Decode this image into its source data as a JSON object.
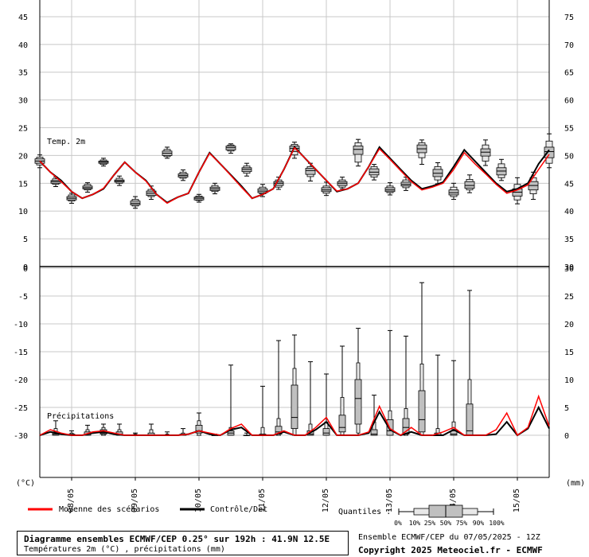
{
  "chart_data": {
    "type": "box",
    "title": "Diagramme ensembles ECMWF/CEP 0.25° sur 192h : 41.9N 12.5E",
    "subtitle": "Températures 2m (°C) , précipitations (mm)",
    "x_tick_labels": [
      "08/05",
      "09/05",
      "10/05",
      "11/05",
      "12/05",
      "13/05",
      "14/05",
      "15/05"
    ],
    "x_range": [
      0,
      48
    ],
    "day_ticks": [
      3,
      9,
      15,
      21,
      27,
      33,
      39,
      45
    ],
    "temperature_panel": {
      "label": "Temp. 2m",
      "left_axis_ticks": [
        45,
        40,
        35,
        30,
        25,
        20,
        15,
        10,
        5,
        0
      ],
      "right_axis_ticks": [
        75,
        70,
        65,
        60,
        55,
        50,
        45,
        40,
        35,
        30
      ],
      "ylim": [
        0,
        48
      ],
      "x": [
        0,
        1,
        2,
        3,
        4,
        5,
        6,
        7,
        8,
        9,
        10,
        11,
        12,
        13,
        14,
        15,
        16,
        17,
        18,
        19,
        20,
        21,
        22,
        23,
        24,
        25,
        26,
        27,
        28,
        29,
        30,
        31,
        32,
        33,
        34,
        35,
        36,
        37,
        38,
        39,
        40,
        41,
        42,
        43,
        44,
        45,
        46,
        47,
        48
      ],
      "control": [
        19,
        17,
        15.5,
        13.5,
        12.3,
        13,
        14,
        16.5,
        18.8,
        17,
        15.5,
        13,
        11.5,
        12.5,
        13.2,
        17,
        20.5,
        18.5,
        16.5,
        14.5,
        12.3,
        13,
        14,
        17.5,
        21.5,
        19.5,
        17.5,
        15.5,
        13.5,
        14,
        15,
        18,
        21.5,
        19.5,
        17.5,
        15.5,
        14,
        14.5,
        15.2,
        18,
        21,
        19,
        17,
        15,
        13.5,
        14,
        15,
        18.5,
        21
      ],
      "mean": [
        19,
        17,
        15.3,
        13.5,
        12.3,
        13,
        14.1,
        16.5,
        18.8,
        17,
        15.4,
        13,
        11.4,
        12.5,
        13.2,
        17,
        20.4,
        18.5,
        16.4,
        14.3,
        12.3,
        13,
        14,
        17.5,
        21.4,
        19.5,
        17.5,
        15.5,
        13.6,
        14,
        15,
        18,
        21.2,
        19.3,
        17.3,
        15.3,
        13.8,
        14.3,
        15,
        17.5,
        20.5,
        18.5,
        16.7,
        14.8,
        13.2,
        13.8,
        14.7,
        17.5,
        20.2
      ],
      "boxes": [
        {
          "t": 0,
          "min": 17.8,
          "p10": 18.3,
          "p25": 18.6,
          "med": 19,
          "p75": 19.4,
          "p90": 19.7,
          "max": 20.1
        },
        {
          "t": 3,
          "min": 14.4,
          "p10": 14.8,
          "p25": 15,
          "med": 15.3,
          "p75": 15.5,
          "p90": 15.8,
          "max": 16.1
        },
        {
          "t": 6,
          "min": 11.4,
          "p10": 11.8,
          "p25": 12,
          "med": 12.3,
          "p75": 12.6,
          "p90": 12.9,
          "max": 13.2
        },
        {
          "t": 9,
          "min": 13.4,
          "p10": 13.8,
          "p25": 14,
          "med": 14.2,
          "p75": 14.5,
          "p90": 14.8,
          "max": 15.1
        },
        {
          "t": 12,
          "min": 18.1,
          "p10": 18.4,
          "p25": 18.6,
          "med": 18.8,
          "p75": 19,
          "p90": 19.2,
          "max": 19.5
        },
        {
          "t": 15,
          "min": 14.6,
          "p10": 15,
          "p25": 15.2,
          "med": 15.4,
          "p75": 15.6,
          "p90": 15.9,
          "max": 16.3
        },
        {
          "t": 18,
          "min": 10.5,
          "p10": 10.9,
          "p25": 11.1,
          "med": 11.4,
          "p75": 11.8,
          "p90": 12.1,
          "max": 12.6
        },
        {
          "t": 21,
          "min": 12.1,
          "p10": 12.6,
          "p25": 12.8,
          "med": 13.2,
          "p75": 13.6,
          "p90": 13.9,
          "max": 14.5
        },
        {
          "t": 24,
          "min": 19.5,
          "p10": 19.8,
          "p25": 20,
          "med": 20.4,
          "p75": 20.8,
          "p90": 21.1,
          "max": 21.5
        },
        {
          "t": 27,
          "min": 15.5,
          "p10": 15.9,
          "p25": 16.1,
          "med": 16.4,
          "p75": 16.7,
          "p90": 17,
          "max": 17.4
        },
        {
          "t": 30,
          "min": 11.6,
          "p10": 11.9,
          "p25": 12,
          "med": 12.3,
          "p75": 12.5,
          "p90": 12.7,
          "max": 13
        },
        {
          "t": 33,
          "min": 13.1,
          "p10": 13.5,
          "p25": 13.7,
          "med": 14,
          "p75": 14.3,
          "p90": 14.6,
          "max": 15
        },
        {
          "t": 36,
          "min": 20.4,
          "p10": 20.8,
          "p25": 21,
          "med": 21.4,
          "p75": 21.7,
          "p90": 21.9,
          "max": 22.1
        },
        {
          "t": 39,
          "min": 16.3,
          "p10": 16.8,
          "p25": 17.1,
          "med": 17.5,
          "p75": 17.8,
          "p90": 18.1,
          "max": 18.6
        },
        {
          "t": 42,
          "min": 12.6,
          "p10": 13.1,
          "p25": 13.3,
          "med": 13.6,
          "p75": 14,
          "p90": 14.3,
          "max": 14.8
        },
        {
          "t": 45,
          "min": 13.9,
          "p10": 14.3,
          "p25": 14.6,
          "med": 15,
          "p75": 15.3,
          "p90": 15.6,
          "max": 16.1
        },
        {
          "t": 48,
          "min": 19.5,
          "p10": 20.1,
          "p25": 20.7,
          "med": 21.3,
          "p75": 21.7,
          "p90": 22,
          "max": 22.4
        },
        {
          "t": 51,
          "min": 15.4,
          "p10": 16.2,
          "p25": 16.6,
          "med": 17.3,
          "p75": 17.7,
          "p90": 18,
          "max": 18.6
        },
        {
          "t": 54,
          "min": 12.8,
          "p10": 13.2,
          "p25": 13.5,
          "med": 13.8,
          "p75": 14.2,
          "p90": 14.5,
          "max": 15.2
        },
        {
          "t": 57,
          "min": 14,
          "p10": 14.3,
          "p25": 14.6,
          "med": 15,
          "p75": 15.3,
          "p90": 15.6,
          "max": 16.1
        },
        {
          "t": 60,
          "min": 18.1,
          "p10": 18.8,
          "p25": 20.2,
          "med": 21.1,
          "p75": 21.7,
          "p90": 22.3,
          "max": 22.9
        },
        {
          "t": 63,
          "min": 15.6,
          "p10": 16.1,
          "p25": 16.5,
          "med": 17,
          "p75": 17.6,
          "p90": 18,
          "max": 18.4
        },
        {
          "t": 66,
          "min": 12.9,
          "p10": 13.3,
          "p25": 13.5,
          "med": 13.8,
          "p75": 14.2,
          "p90": 14.5,
          "max": 15.1
        },
        {
          "t": 69,
          "min": 13.7,
          "p10": 14.2,
          "p25": 14.5,
          "med": 14.8,
          "p75": 15.2,
          "p90": 15.6,
          "max": 16.1
        },
        {
          "t": 72,
          "min": 18.4,
          "p10": 19.6,
          "p25": 20.5,
          "med": 21.2,
          "p75": 21.9,
          "p90": 22.3,
          "max": 22.8
        },
        {
          "t": 75,
          "min": 14.9,
          "p10": 15.6,
          "p25": 16.2,
          "med": 16.8,
          "p75": 17.5,
          "p90": 18,
          "max": 18.7
        },
        {
          "t": 78,
          "min": 12.1,
          "p10": 12.6,
          "p25": 12.9,
          "med": 13.3,
          "p75": 13.8,
          "p90": 14.3,
          "max": 15
        },
        {
          "t": 81,
          "min": 13.3,
          "p10": 13.8,
          "p25": 14.1,
          "med": 14.6,
          "p75": 15.3,
          "p90": 15.7,
          "max": 16.5
        },
        {
          "t": 84,
          "min": 18.2,
          "p10": 19,
          "p25": 19.9,
          "med": 20.6,
          "p75": 21.2,
          "p90": 21.9,
          "max": 22.8
        },
        {
          "t": 87,
          "min": 15.5,
          "p10": 16,
          "p25": 16.5,
          "med": 17.2,
          "p75": 17.8,
          "p90": 18.5,
          "max": 19.3
        },
        {
          "t": 90,
          "min": 11.3,
          "p10": 12,
          "p25": 12.7,
          "med": 13.4,
          "p75": 14,
          "p90": 14.8,
          "max": 16
        },
        {
          "t": 93,
          "min": 12.1,
          "p10": 13.1,
          "p25": 13.8,
          "med": 14.6,
          "p75": 15.3,
          "p90": 16,
          "max": 17
        },
        {
          "t": 96,
          "min": 17.8,
          "p10": 18.6,
          "p25": 19.6,
          "med": 20.7,
          "p75": 21.5,
          "p90": 22.6,
          "max": 23.9
        }
      ]
    },
    "precipitation_panel": {
      "label": "Précipitations",
      "left_axis_ticks": [
        0,
        -5,
        -10,
        -15,
        -20,
        -25,
        -30
      ],
      "right_axis_ticks": [
        30,
        25,
        20,
        15,
        10,
        5,
        0
      ],
      "ylim": [
        0,
        30
      ],
      "control": [
        0,
        0.3,
        0.1,
        0,
        0,
        0.2,
        0.3,
        0.1,
        0,
        0,
        0,
        0,
        0,
        0,
        0.1,
        0.4,
        0.1,
        0,
        0.5,
        0.7,
        0,
        0,
        0,
        0.3,
        0,
        0,
        0.5,
        1.2,
        0,
        0,
        0,
        0.2,
        2.1,
        0.5,
        0,
        0.3,
        0,
        0,
        0,
        0.5,
        0,
        0,
        0,
        0.1,
        1.2,
        0,
        0.6,
        2.5,
        0.6
      ],
      "mean": [
        0,
        0.5,
        0.2,
        0,
        0,
        0.3,
        0.4,
        0.2,
        0,
        0,
        0,
        0,
        0,
        0,
        0.1,
        0.4,
        0.2,
        0,
        0.6,
        1.0,
        0,
        0,
        0,
        0.4,
        0,
        0,
        0.7,
        1.6,
        0,
        0,
        0,
        0.3,
        2.6,
        0.6,
        0,
        0.7,
        0,
        0,
        0.3,
        0.7,
        0,
        0,
        0,
        0.5,
        2.0,
        0,
        0.7,
        3.5,
        0.8
      ],
      "boxes": [
        {
          "t": 6,
          "min": 0,
          "p10": 0,
          "p25": 0,
          "med": 0.1,
          "p75": 0.3,
          "p90": 0.6,
          "max": 1.3
        },
        {
          "t": 12,
          "min": 0,
          "p10": 0,
          "p25": 0,
          "med": 0,
          "p75": 0.1,
          "p90": 0.2,
          "max": 0.4
        },
        {
          "t": 18,
          "min": 0,
          "p10": 0,
          "p25": 0,
          "med": 0.1,
          "p75": 0.3,
          "p90": 0.5,
          "max": 0.9
        },
        {
          "t": 24,
          "min": 0,
          "p10": 0,
          "p25": 0.1,
          "med": 0.2,
          "p75": 0.5,
          "p90": 0.7,
          "max": 1.0
        },
        {
          "t": 30,
          "min": 0,
          "p10": 0,
          "p25": 0,
          "med": 0.1,
          "p75": 0.3,
          "p90": 0.5,
          "max": 1.0
        },
        {
          "t": 36,
          "min": 0,
          "p10": 0,
          "p25": 0,
          "med": 0,
          "p75": 0,
          "p90": 0.1,
          "max": 0.2
        },
        {
          "t": 42,
          "min": 0,
          "p10": 0,
          "p25": 0,
          "med": 0,
          "p75": 0.2,
          "p90": 0.5,
          "max": 1.0
        },
        {
          "t": 48,
          "min": 0,
          "p10": 0,
          "p25": 0,
          "med": 0,
          "p75": 0,
          "p90": 0.1,
          "max": 0.3
        },
        {
          "t": 54,
          "min": 0,
          "p10": 0,
          "p25": 0,
          "med": 0,
          "p75": 0.1,
          "p90": 0.2,
          "max": 0.6
        },
        {
          "t": 60,
          "min": 0,
          "p10": 0,
          "p25": 0.2,
          "med": 0.4,
          "p75": 0.9,
          "p90": 1.3,
          "max": 2.0
        },
        {
          "t": 66,
          "min": 0,
          "p10": 0,
          "p25": 0,
          "med": 0,
          "p75": 0,
          "p90": 0.1,
          "max": 0.1
        },
        {
          "t": 72,
          "min": 0,
          "p10": 0,
          "p25": 0,
          "med": 0.2,
          "p75": 0.4,
          "p90": 0.7,
          "max": 6.3
        },
        {
          "t": 78,
          "min": 0,
          "p10": 0,
          "p25": 0,
          "med": 0,
          "p75": 0,
          "p90": 0,
          "max": 0.2
        },
        {
          "t": 84,
          "min": 0,
          "p10": 0,
          "p25": 0,
          "med": 0,
          "p75": 0.1,
          "p90": 0.7,
          "max": 4.4
        },
        {
          "t": 90,
          "min": 0,
          "p10": 0,
          "p25": 0.1,
          "med": 0.3,
          "p75": 0.8,
          "p90": 1.5,
          "max": 8.5
        },
        {
          "t": 96,
          "min": 0,
          "p10": 0,
          "p25": 0.6,
          "med": 1.6,
          "p75": 4.5,
          "p90": 6.0,
          "max": 9.0
        },
        {
          "t": 102,
          "min": 0,
          "p10": 0,
          "p25": 0,
          "med": 0.1,
          "p75": 0.4,
          "p90": 1.0,
          "max": 6.6
        },
        {
          "t": 108,
          "min": 0,
          "p10": 0,
          "p25": 0,
          "med": 0.2,
          "p75": 0.6,
          "p90": 1.2,
          "max": 5.5
        },
        {
          "t": 114,
          "min": 0,
          "p10": 0,
          "p25": 0.3,
          "med": 0.7,
          "p75": 1.8,
          "p90": 3.4,
          "max": 8.0
        },
        {
          "t": 120,
          "min": 0,
          "p10": 0.2,
          "p25": 1.0,
          "med": 3.3,
          "p75": 5.0,
          "p90": 6.5,
          "max": 9.6
        },
        {
          "t": 126,
          "min": 0,
          "p10": 0,
          "p25": 0,
          "med": 0.1,
          "p75": 0.5,
          "p90": 1.2,
          "max": 3.6
        },
        {
          "t": 132,
          "min": 0,
          "p10": 0,
          "p25": 0,
          "med": 0.4,
          "p75": 1.4,
          "p90": 2.2,
          "max": 9.4
        },
        {
          "t": 138,
          "min": 0,
          "p10": 0,
          "p25": 0.1,
          "med": 0.7,
          "p75": 1.5,
          "p90": 2.4,
          "max": 8.9
        },
        {
          "t": 144,
          "min": 0,
          "p10": 0,
          "p25": 0.3,
          "med": 1.4,
          "p75": 4.0,
          "p90": 6.4,
          "max": 13.7
        },
        {
          "t": 150,
          "min": 0,
          "p10": 0,
          "p25": 0,
          "med": 0,
          "p75": 0.2,
          "p90": 0.6,
          "max": 7.2
        },
        {
          "t": 156,
          "min": 0,
          "p10": 0,
          "p25": 0,
          "med": 0.1,
          "p75": 0.4,
          "p90": 1.2,
          "max": 6.7
        },
        {
          "t": 162,
          "min": 0,
          "p10": 0,
          "p25": 0,
          "med": 0.4,
          "p75": 2.8,
          "p90": 5.0,
          "max": 13.0
        }
      ]
    },
    "left_unit": "(°C)",
    "right_unit": "(mm)",
    "legend": {
      "mean_label": "Moyenne des scénarios",
      "control_label": "Contrôle/Det",
      "quantiles_label": "Quantiles :",
      "quantile_ticks": [
        "0%",
        "10%",
        "25%",
        "50%",
        "75%",
        "90%",
        "100%"
      ]
    },
    "colors": {
      "mean": "#ff0000",
      "control": "#000000",
      "box_fill": "#c0c0c0",
      "grid": "#c8c8c8"
    }
  },
  "footer": {
    "info_title": "Diagramme ensembles ECMWF/CEP 0.25° sur 192h : 41.9N 12.5E",
    "info_subtitle": "Températures 2m (°C) , précipitations (mm)",
    "run": "Ensemble ECMWF/CEP du 07/05/2025 - 12Z",
    "copyright": "Copyright 2025 Meteociel.fr - ECMWF"
  }
}
